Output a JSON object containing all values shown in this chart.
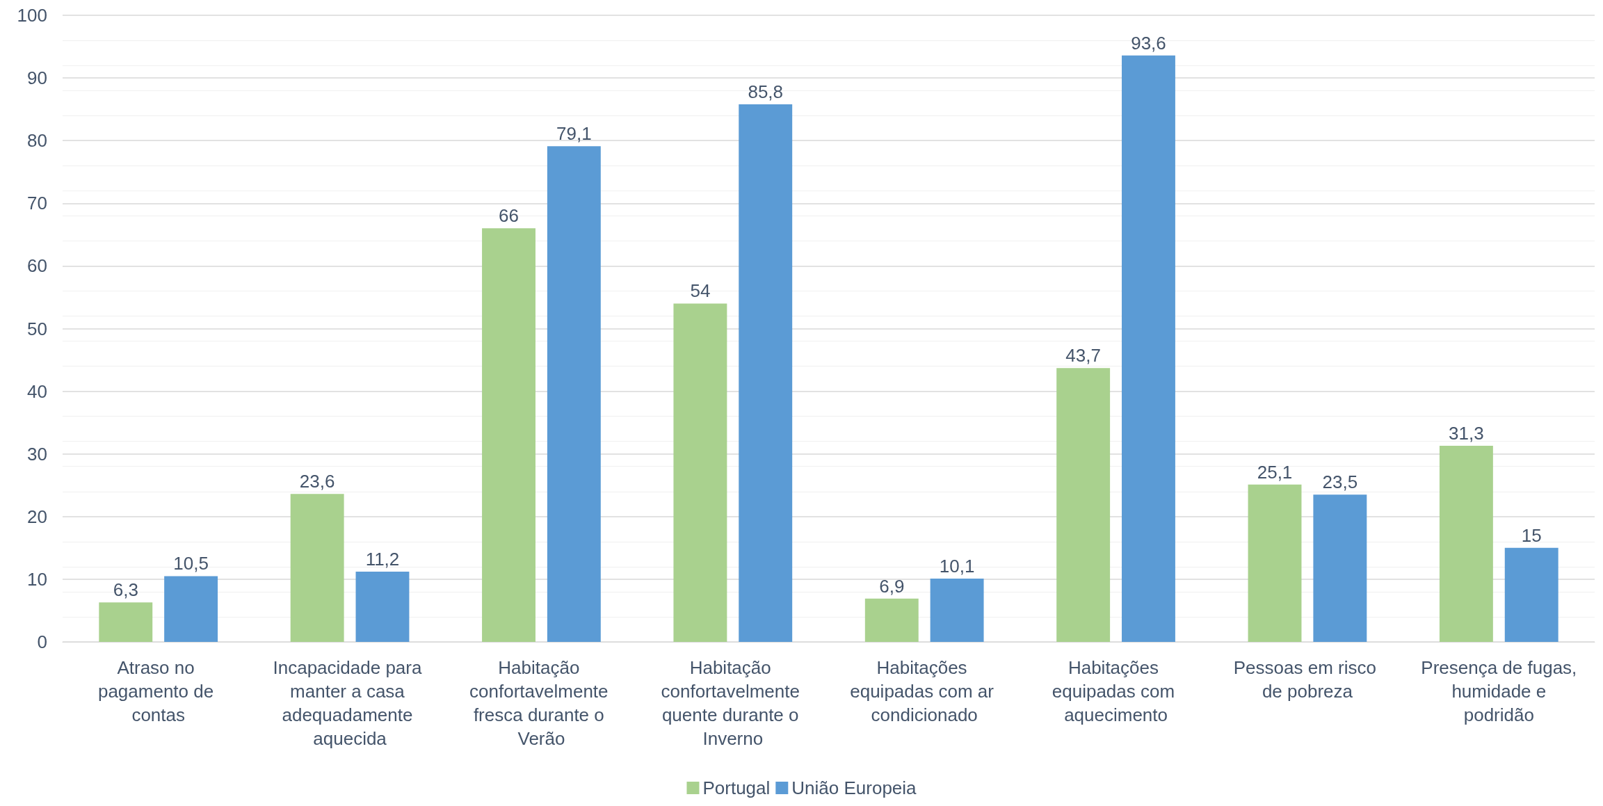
{
  "chart_data": {
    "type": "bar",
    "categories": [
      "Atraso no pagamento de contas",
      "Incapacidade para manter a casa adequadamente aquecida",
      "Habitação confortavelmente fresca durante o Verão",
      "Habitação confortavelmente quente durante o Inverno",
      "Habitações equipadas com ar condicionado",
      "Habitações equipadas com aquecimento",
      "Pessoas em risco de pobreza",
      "Presença de fugas, humidade e podridão"
    ],
    "series": [
      {
        "name": "Portugal",
        "color": "#a9d18e",
        "values": [
          6.3,
          23.6,
          66,
          54,
          6.9,
          43.7,
          25.1,
          31.3
        ],
        "value_labels": [
          "6,3",
          "23,6",
          "66",
          "54",
          "6,9",
          "43,7",
          "25,1",
          "31,3"
        ]
      },
      {
        "name": "União Europeia",
        "color": "#5b9bd5",
        "values": [
          10.5,
          11.2,
          79.1,
          85.8,
          10.1,
          93.6,
          23.5,
          15
        ],
        "value_labels": [
          "10,5",
          "11,2",
          "79,1",
          "85,8",
          "10,1",
          "93,6",
          "23,5",
          "15"
        ]
      }
    ],
    "ylim": [
      0,
      100
    ],
    "yticks": [
      0,
      10,
      20,
      30,
      40,
      50,
      60,
      70,
      80,
      90,
      100
    ],
    "grid": true,
    "legend": "bottom"
  }
}
